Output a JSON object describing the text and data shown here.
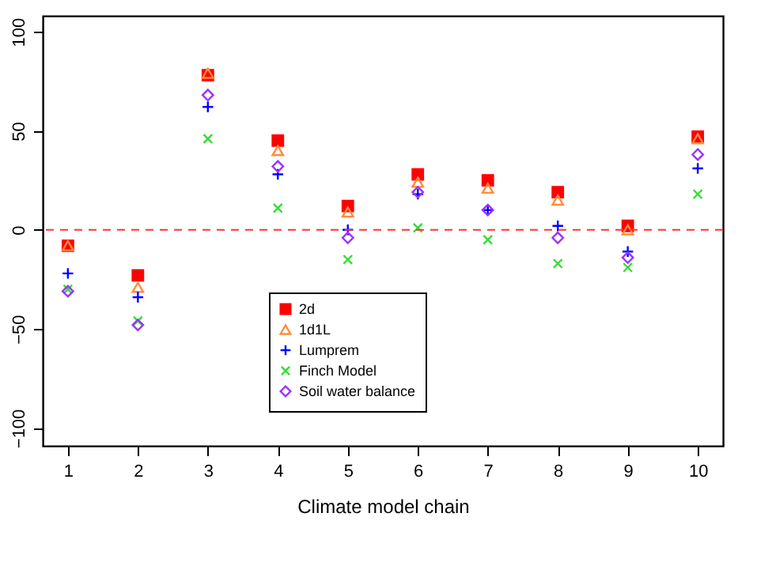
{
  "chart_data": {
    "type": "scatter",
    "xlabel": "Climate model chain",
    "x": [
      1,
      2,
      3,
      4,
      5,
      6,
      7,
      8,
      9,
      10
    ],
    "xlim": [
      0.64,
      10.36
    ],
    "xticks": [
      1,
      2,
      3,
      4,
      5,
      6,
      7,
      8,
      9,
      10
    ],
    "ylim": [
      -109,
      108
    ],
    "yticks": [
      -100,
      -50,
      0,
      50,
      100
    ],
    "grid": false,
    "legend": "bottom",
    "ref_lines": [
      {
        "axis": "y",
        "value": 0,
        "color": "#ff3333",
        "line_style": "dashed"
      }
    ],
    "series": [
      {
        "name": "2d",
        "color": "#ff0000",
        "marker": "square",
        "values": [
          -8,
          -23,
          78,
          45,
          12,
          28,
          25,
          19,
          2,
          47
        ]
      },
      {
        "name": "1d1L",
        "color": "#ff8c3c",
        "marker": "triangle",
        "values": [
          -8,
          -29,
          79,
          40,
          9,
          24,
          21,
          15,
          0,
          46
        ]
      },
      {
        "name": "Lumprem",
        "color": "#0000ff",
        "marker": "cross",
        "values": [
          -22,
          -34,
          62,
          28,
          0,
          18,
          10,
          2,
          -11,
          31
        ]
      },
      {
        "name": "Finch Model",
        "color": "#33dd33",
        "marker": "x",
        "values": [
          -30,
          -46,
          46,
          11,
          -15,
          1,
          -5,
          -17,
          -19,
          18
        ]
      },
      {
        "name": "Soil water balance",
        "color": "#9933ff",
        "marker": "diamond",
        "values": [
          -31,
          -48,
          68,
          32,
          -4,
          19,
          10,
          -4,
          -14,
          38
        ]
      }
    ]
  }
}
